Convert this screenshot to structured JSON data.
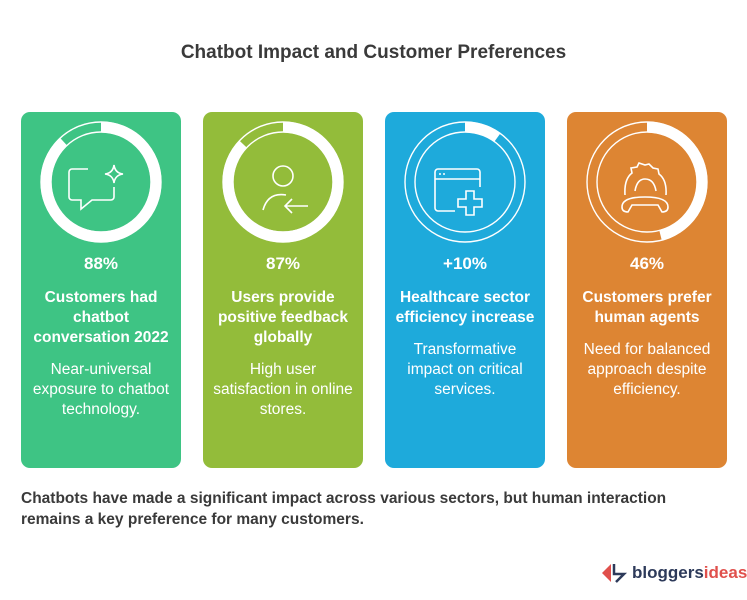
{
  "title": "Chatbot Impact and Customer Preferences",
  "cards": [
    {
      "stat": "88%",
      "percent": 88,
      "heading": "Customers had chatbot conversation 2022",
      "description": "Near-universal exposure to chatbot technology.",
      "color": "#3ec484",
      "icon": "chat-sparkle-icon"
    },
    {
      "stat": "87%",
      "percent": 87,
      "heading": "Users provide positive feedback globally",
      "description": "High user satisfaction in online stores.",
      "color": "#93bc3a",
      "icon": "user-arrow-icon"
    },
    {
      "stat": "+10%",
      "percent": 10,
      "heading": "Healthcare sector efficiency increase",
      "description": "Transformative impact on critical services.",
      "color": "#1eaadb",
      "icon": "medical-window-icon"
    },
    {
      "stat": "46%",
      "percent": 46,
      "heading": "Customers prefer human agents",
      "description": "Need for balanced approach despite efficiency.",
      "color": "#dd8533",
      "icon": "support-gear-phone-icon"
    }
  ],
  "footer": "Chatbots have made a significant impact across various sectors, but human interaction remains a key preference for many customers.",
  "logo": {
    "part1": "bloggers",
    "part2": "ideas",
    "color1": "#2d3a5a",
    "color2": "#e0504c"
  }
}
